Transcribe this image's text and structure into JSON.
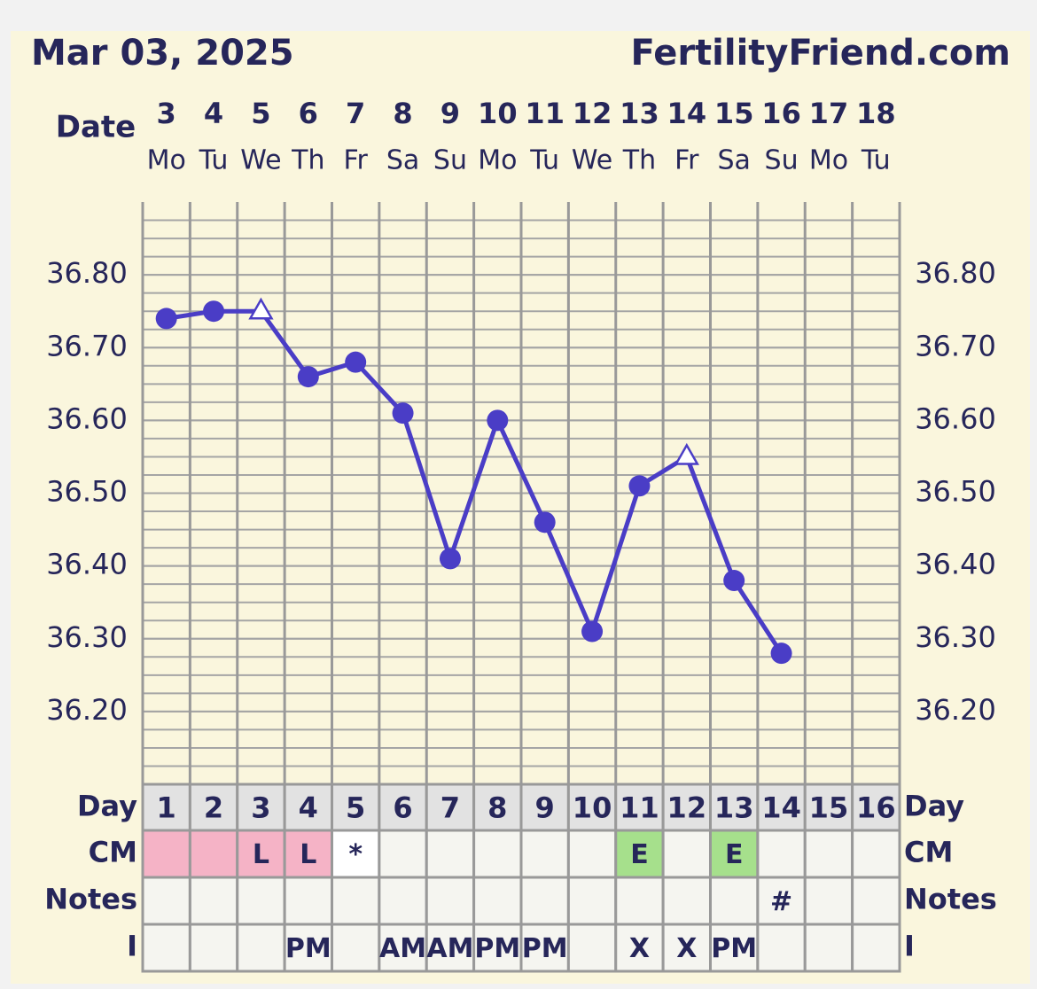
{
  "chart_data": {
    "type": "line",
    "date_text": "Mar 03, 2025",
    "site": "FertilityFriend.com",
    "date_label": "Date",
    "categories": [
      "3",
      "4",
      "5",
      "6",
      "7",
      "8",
      "9",
      "10",
      "11",
      "12",
      "13",
      "14",
      "15",
      "16",
      "17",
      "18"
    ],
    "weekdays": [
      "Mo",
      "Tu",
      "We",
      "Th",
      "Fr",
      "Sa",
      "Su",
      "Mo",
      "Tu",
      "We",
      "Th",
      "Fr",
      "Sa",
      "Su",
      "Mo",
      "Tu"
    ],
    "series": [
      {
        "color": "#4a3dc6",
        "values": [
          36.74,
          36.75,
          36.75,
          36.66,
          36.68,
          36.61,
          36.41,
          36.6,
          36.46,
          36.31,
          36.51,
          36.55,
          36.38,
          36.28,
          null,
          null
        ],
        "markers": [
          "circle",
          "circle",
          "triangle",
          "circle",
          "circle",
          "circle",
          "circle",
          "circle",
          "circle",
          "circle",
          "circle",
          "triangle",
          "circle",
          "circle",
          "circle",
          "circle"
        ]
      }
    ],
    "ylim": [
      36.1,
      36.9
    ],
    "yticks": [
      {
        "value": 36.2,
        "label": "36.20"
      },
      {
        "value": 36.3,
        "label": "36.30"
      },
      {
        "value": 36.4,
        "label": "36.40"
      },
      {
        "value": 36.5,
        "label": "36.50"
      },
      {
        "value": 36.6,
        "label": "36.60"
      },
      {
        "value": 36.7,
        "label": "36.70"
      },
      {
        "value": 36.8,
        "label": "36.80"
      }
    ],
    "grid": true,
    "table": {
      "row_labels": [
        "Day",
        "CM",
        "Notes",
        "I"
      ],
      "day": [
        1,
        2,
        3,
        4,
        5,
        6,
        7,
        8,
        9,
        10,
        11,
        12,
        13,
        14,
        15,
        16
      ],
      "cm": [
        null,
        null,
        "L",
        "L",
        "*",
        null,
        null,
        null,
        null,
        null,
        "E",
        null,
        "E",
        null,
        null,
        null
      ],
      "cm_colors": [
        "#f5b3c6",
        "#f5b3c6",
        "#f5b3c6",
        "#f5b3c6",
        "#ffffff",
        null,
        null,
        null,
        null,
        null,
        "#a6e08c",
        null,
        "#a6e08c",
        null,
        null,
        null
      ],
      "notes": [
        null,
        null,
        null,
        null,
        null,
        null,
        null,
        null,
        null,
        null,
        null,
        null,
        null,
        "#",
        null,
        null
      ],
      "i": [
        null,
        null,
        null,
        "PM",
        null,
        "AM",
        "AM",
        "PM",
        "PM",
        null,
        "X",
        "X",
        "PM",
        null,
        null,
        null
      ]
    }
  }
}
